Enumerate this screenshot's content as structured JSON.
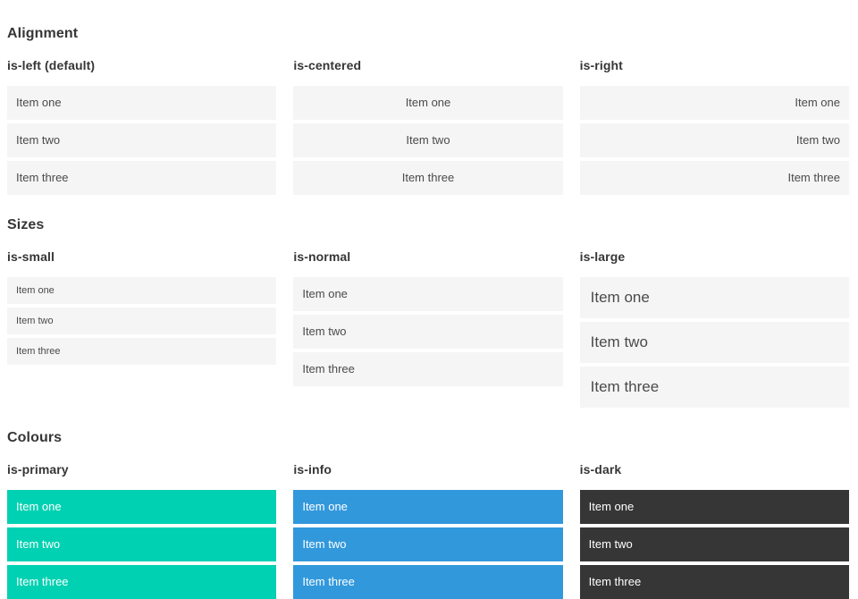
{
  "colors": {
    "primary": "#00d1b2",
    "info": "#3298dc",
    "dark": "#363636",
    "item_bg": "#f5f5f5",
    "item_text": "#4a4a4a",
    "heading_text": "#363636"
  },
  "sections": [
    {
      "id": "alignment",
      "title": "Alignment",
      "columns": [
        {
          "subtitle": "is-left (default)",
          "variant": "align-left",
          "items": [
            "Item one",
            "Item two",
            "Item three"
          ]
        },
        {
          "subtitle": "is-centered",
          "variant": "align-center",
          "items": [
            "Item one",
            "Item two",
            "Item three"
          ]
        },
        {
          "subtitle": "is-right",
          "variant": "align-right",
          "items": [
            "Item one",
            "Item two",
            "Item three"
          ]
        }
      ]
    },
    {
      "id": "sizes",
      "title": "Sizes",
      "columns": [
        {
          "subtitle": "is-small",
          "variant": "size-small",
          "items": [
            "Item one",
            "Item two",
            "Item three"
          ]
        },
        {
          "subtitle": "is-normal",
          "variant": "size-normal",
          "items": [
            "Item one",
            "Item two",
            "Item three"
          ]
        },
        {
          "subtitle": "is-large",
          "variant": "size-large",
          "items": [
            "Item one",
            "Item two",
            "Item three"
          ]
        }
      ]
    },
    {
      "id": "colours",
      "title": "Colours",
      "columns": [
        {
          "subtitle": "is-primary",
          "variant": "color-primary",
          "items": [
            "Item one",
            "Item two",
            "Item three"
          ]
        },
        {
          "subtitle": "is-info",
          "variant": "color-info",
          "items": [
            "Item one",
            "Item two",
            "Item three"
          ]
        },
        {
          "subtitle": "is-dark",
          "variant": "color-dark",
          "items": [
            "Item one",
            "Item two",
            "Item three"
          ]
        }
      ]
    }
  ]
}
